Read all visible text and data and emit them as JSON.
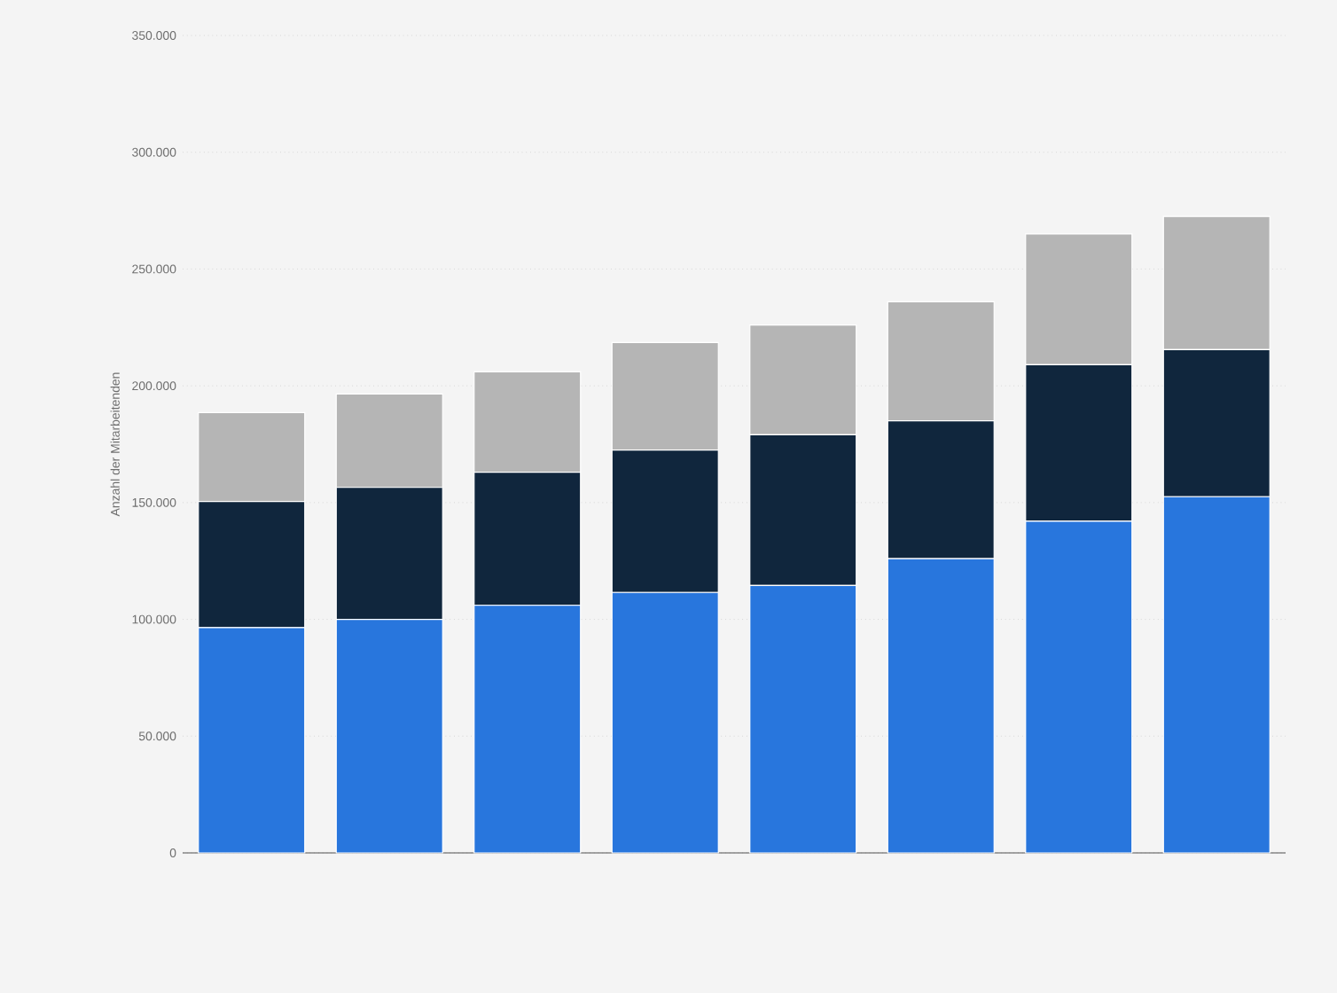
{
  "chart_data": {
    "type": "bar",
    "stacked": true,
    "ylabel": "Anzahl der Mitarbeitenden",
    "categories": [
      null,
      null,
      null,
      null,
      null,
      null,
      null,
      null
    ],
    "series": [
      {
        "color": "#2876dd",
        "values": [
          96500,
          100000,
          106000,
          111500,
          114500,
          126000,
          142000,
          152500
        ]
      },
      {
        "color": "#10263d",
        "values": [
          54000,
          56500,
          57000,
          61000,
          64500,
          59000,
          67000,
          63000
        ]
      },
      {
        "color": "#b5b5b5",
        "values": [
          38000,
          40000,
          43000,
          46000,
          47000,
          51000,
          56000,
          57000
        ]
      }
    ],
    "ylim": [
      0,
      350000
    ],
    "yticks": [
      0,
      {
        "value": 50000,
        "label": "50.000"
      },
      {
        "value": 100000,
        "label": "100.000"
      },
      {
        "value": 150000,
        "label": "150.000"
      },
      {
        "value": 200000,
        "label": "200.000"
      },
      {
        "value": 250000,
        "label": "250.000"
      },
      {
        "value": 300000,
        "label": "300.000"
      },
      {
        "value": 350000,
        "label": "350.000"
      }
    ],
    "grid": "y"
  }
}
